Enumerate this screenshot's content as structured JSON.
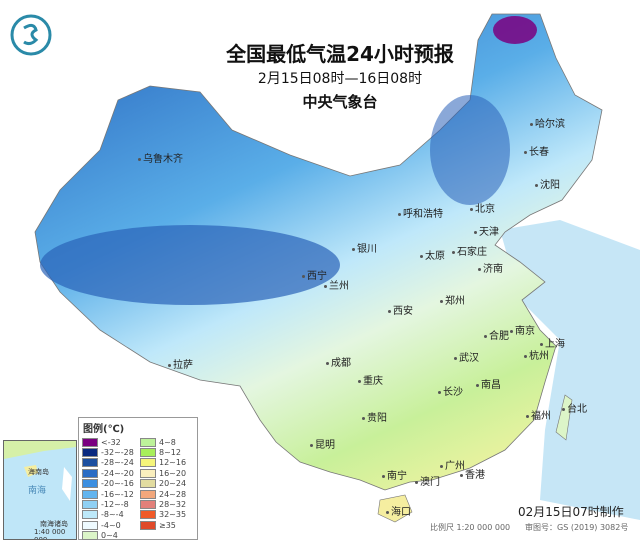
{
  "title": "全国最低气温24小时预报",
  "period": "2月15日08时—16日08时",
  "issuer": "中央气象台",
  "legend": {
    "title": "图例(℃)",
    "items": [
      {
        "label": "<-32",
        "color": "#7a0080"
      },
      {
        "label": "-32~-28",
        "color": "#0a2a80"
      },
      {
        "label": "-28~-24",
        "color": "#1c4fa0"
      },
      {
        "label": "-24~-20",
        "color": "#2a6cc4"
      },
      {
        "label": "-20~-16",
        "color": "#3b8ee0"
      },
      {
        "label": "-16~-12",
        "color": "#62b4ee"
      },
      {
        "label": "-12~-8",
        "color": "#8fd0f4"
      },
      {
        "label": "-8~-4",
        "color": "#bde9fa"
      },
      {
        "label": "-4~0",
        "color": "#eefaff"
      },
      {
        "label": "0~4",
        "color": "#dcf5c8"
      },
      {
        "label": "4~8",
        "color": "#bdf29a"
      },
      {
        "label": "8~12",
        "color": "#a8ef5a"
      },
      {
        "label": "12~16",
        "color": "#f5f57a"
      },
      {
        "label": "16~20",
        "color": "#faefbe"
      },
      {
        "label": "20~24",
        "color": "#e2dca0"
      },
      {
        "label": "24~28",
        "color": "#f2a77c"
      },
      {
        "label": "28~32",
        "color": "#e2807a"
      },
      {
        "label": "32~35",
        "color": "#f05a28"
      },
      {
        "label": "≥35",
        "color": "#e04a2a"
      }
    ]
  },
  "cities": [
    {
      "name": "乌鲁木齐"
    },
    {
      "name": "哈尔滨"
    },
    {
      "name": "长春"
    },
    {
      "name": "沈阳"
    },
    {
      "name": "呼和浩特"
    },
    {
      "name": "北京"
    },
    {
      "name": "天津"
    },
    {
      "name": "石家庄"
    },
    {
      "name": "太原"
    },
    {
      "name": "济南"
    },
    {
      "name": "银川"
    },
    {
      "name": "西宁"
    },
    {
      "name": "兰州"
    },
    {
      "name": "西安"
    },
    {
      "name": "郑州"
    },
    {
      "name": "合肥"
    },
    {
      "name": "南京"
    },
    {
      "name": "上海"
    },
    {
      "name": "杭州"
    },
    {
      "name": "成都"
    },
    {
      "name": "武汉"
    },
    {
      "name": "重庆"
    },
    {
      "name": "长沙"
    },
    {
      "name": "南昌"
    },
    {
      "name": "福州"
    },
    {
      "name": "台北"
    },
    {
      "name": "贵阳"
    },
    {
      "name": "拉萨"
    },
    {
      "name": "昆明"
    },
    {
      "name": "南宁"
    },
    {
      "name": "广州"
    },
    {
      "name": "澳门"
    },
    {
      "name": "香港"
    },
    {
      "name": "海口"
    }
  ],
  "inset": {
    "sea": "南海",
    "islands": "海南岛",
    "name": "南海诸岛",
    "scale": "1:40 000 000"
  },
  "footer": {
    "made": "02月15日07时制作",
    "scale": "比例尺 1:20 000 000",
    "review": "审图号：GS (2019) 3082号"
  },
  "logo": "中国气象局"
}
